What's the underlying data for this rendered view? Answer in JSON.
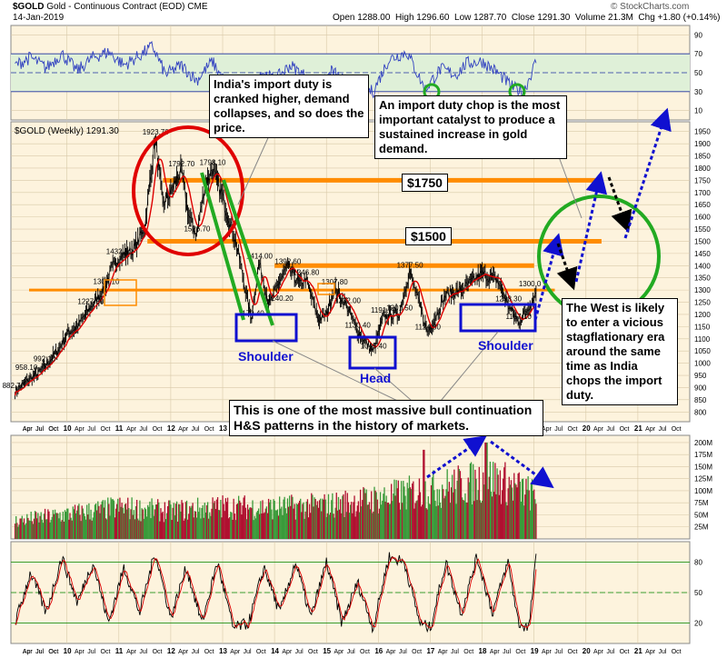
{
  "header": {
    "symbol": "$GOLD",
    "description": "Gold - Continuous Contract (EOD)",
    "exchange": "CME",
    "date": "14-Jan-2019",
    "open": "Open 1288.00",
    "high": "High 1296.60",
    "low": "Low 1287.70",
    "close": "Close 1291.30",
    "volume": "Volume 21.3M",
    "chg": "Chg +1.80 (+0.14%)",
    "credit": "© StockCharts.com",
    "series_label": "$GOLD (Weekly) 1291.30"
  },
  "annotations": {
    "india_note": "India's import duty is cranked higher, demand collapses, and so does the price.",
    "catalyst_note": "An import duty chop is the most important catalyst to produce a sustained increase in gold demand.",
    "west_note": "The West is likely to enter a vicious stagflationary era around the same time as India chops the import duty.",
    "hs_note": "This is one of the most massive bull continuation H&S patterns in the history of markets.",
    "level_1750": "$1750",
    "level_1500": "$1500",
    "left_shoulder": "Shoulder",
    "head": "Head",
    "right_shoulder": "Shoulder"
  },
  "colors": {
    "panel_bg": "#fdf3dd",
    "rsi_band": "#dff0d8",
    "orange": "#ff8c00",
    "red": "#e00000",
    "green": "#22aa22",
    "blue": "#1010d0",
    "price_line": "#000000",
    "ma_line": "#dd0000",
    "rsi_line": "#3040c0"
  },
  "chart_data": {
    "type": "line",
    "title": "$GOLD (Weekly) 1291.30",
    "price": {
      "ylim": [
        760,
        1990
      ],
      "y_ticks": [
        800,
        850,
        900,
        950,
        1000,
        1050,
        1100,
        1150,
        1200,
        1250,
        1300,
        1350,
        1400,
        1450,
        1500,
        1550,
        1600,
        1650,
        1700,
        1750,
        1800,
        1850,
        1900,
        1950
      ],
      "anchors": [
        [
          2009.0,
          882.7
        ],
        [
          2009.25,
          930
        ],
        [
          2009.45,
          958.1
        ],
        [
          2009.6,
          992.1
        ],
        [
          2009.85,
          1060
        ],
        [
          2010.0,
          1120
        ],
        [
          2010.2,
          1150
        ],
        [
          2010.45,
          1227.5
        ],
        [
          2010.7,
          1300
        ],
        [
          2010.85,
          1380
        ],
        [
          2011.0,
          1432.5
        ],
        [
          2011.3,
          1470
        ],
        [
          2011.5,
          1560
        ],
        [
          2011.7,
          1923.7
        ],
        [
          2011.85,
          1650
        ],
        [
          2012.0,
          1700
        ],
        [
          2012.2,
          1792.7
        ],
        [
          2012.35,
          1600
        ],
        [
          2012.5,
          1526.7
        ],
        [
          2012.65,
          1720
        ],
        [
          2012.8,
          1798.1
        ],
        [
          2013.0,
          1680
        ],
        [
          2013.25,
          1500
        ],
        [
          2013.35,
          1400
        ],
        [
          2013.55,
          1179.4
        ],
        [
          2013.7,
          1414
        ],
        [
          2013.9,
          1240
        ],
        [
          2014.1,
          1340
        ],
        [
          2014.25,
          1392.6
        ],
        [
          2014.5,
          1320
        ],
        [
          2014.6,
          1346.8
        ],
        [
          2014.85,
          1180
        ],
        [
          2015.0,
          1200
        ],
        [
          2015.15,
          1307.8
        ],
        [
          2015.4,
          1232
        ],
        [
          2015.6,
          1130.4
        ],
        [
          2015.9,
          1045.4
        ],
        [
          2016.1,
          1191.7
        ],
        [
          2016.4,
          1201.5
        ],
        [
          2016.6,
          1377.5
        ],
        [
          2016.85,
          1200
        ],
        [
          2016.95,
          1124.3
        ],
        [
          2017.3,
          1280
        ],
        [
          2017.6,
          1300
        ],
        [
          2017.9,
          1350
        ],
        [
          2018.0,
          1366
        ],
        [
          2018.3,
          1340
        ],
        [
          2018.5,
          1238.3
        ],
        [
          2018.7,
          1167.1
        ],
        [
          2018.9,
          1230
        ],
        [
          2019.04,
          1291.3
        ]
      ],
      "labels": [
        {
          "x": 2009.0,
          "y": 882.7,
          "text": "882.70"
        },
        {
          "x": 2009.25,
          "y": 958.1,
          "text": "958.10"
        },
        {
          "x": 2009.6,
          "y": 992.1,
          "text": "992.10"
        },
        {
          "x": 2010.45,
          "y": 1227.5,
          "text": "1227.50"
        },
        {
          "x": 2010.75,
          "y": 1309.1,
          "text": "1309.10"
        },
        {
          "x": 2011.0,
          "y": 1432.5,
          "text": "1432.50"
        },
        {
          "x": 2011.7,
          "y": 1923.7,
          "text": "1923.70"
        },
        {
          "x": 2012.2,
          "y": 1792.7,
          "text": "1792.70"
        },
        {
          "x": 2012.8,
          "y": 1798.1,
          "text": "1798.10"
        },
        {
          "x": 2012.5,
          "y": 1526.7,
          "text": "1526.70"
        },
        {
          "x": 2013.55,
          "y": 1179.4,
          "text": "1179.40"
        },
        {
          "x": 2013.7,
          "y": 1414,
          "text": "1414.00"
        },
        {
          "x": 2014.25,
          "y": 1392.6,
          "text": "1392.60"
        },
        {
          "x": 2014.6,
          "y": 1346.8,
          "text": "1346.80"
        },
        {
          "x": 2014.1,
          "y": 1240.2,
          "text": "1240.20"
        },
        {
          "x": 2015.15,
          "y": 1307.8,
          "text": "1307.80"
        },
        {
          "x": 2015.4,
          "y": 1232,
          "text": "1232.00"
        },
        {
          "x": 2015.6,
          "y": 1130.4,
          "text": "1130.40"
        },
        {
          "x": 2015.9,
          "y": 1045.4,
          "text": "1045.40"
        },
        {
          "x": 2016.1,
          "y": 1191.7,
          "text": "1191.70"
        },
        {
          "x": 2016.4,
          "y": 1201.5,
          "text": "1201.50"
        },
        {
          "x": 2016.6,
          "y": 1377.5,
          "text": "1377.50"
        },
        {
          "x": 2016.95,
          "y": 1124.3,
          "text": "1124.30"
        },
        {
          "x": 2018.5,
          "y": 1238.3,
          "text": "1238.30"
        },
        {
          "x": 2018.7,
          "y": 1167.1,
          "text": "1167.10"
        },
        {
          "x": 2018.95,
          "y": 1300,
          "text": "1300.0"
        }
      ]
    },
    "rsi": {
      "ylim": [
        0,
        100
      ],
      "y_ticks": [
        10,
        30,
        50,
        70,
        90
      ],
      "anchors": [
        [
          2009.0,
          58
        ],
        [
          2009.3,
          66
        ],
        [
          2009.6,
          55
        ],
        [
          2009.9,
          70
        ],
        [
          2010.2,
          52
        ],
        [
          2010.5,
          66
        ],
        [
          2010.8,
          72
        ],
        [
          2011.1,
          58
        ],
        [
          2011.4,
          68
        ],
        [
          2011.65,
          78
        ],
        [
          2011.9,
          48
        ],
        [
          2012.2,
          58
        ],
        [
          2012.5,
          42
        ],
        [
          2012.8,
          62
        ],
        [
          2013.0,
          44
        ],
        [
          2013.3,
          30
        ],
        [
          2013.55,
          25
        ],
        [
          2013.75,
          52
        ],
        [
          2014.0,
          42
        ],
        [
          2014.3,
          58
        ],
        [
          2014.6,
          46
        ],
        [
          2014.85,
          32
        ],
        [
          2015.1,
          52
        ],
        [
          2015.4,
          38
        ],
        [
          2015.6,
          34
        ],
        [
          2015.9,
          30
        ],
        [
          2016.2,
          64
        ],
        [
          2016.55,
          72
        ],
        [
          2016.9,
          32
        ],
        [
          2017.2,
          54
        ],
        [
          2017.5,
          48
        ],
        [
          2017.7,
          60
        ],
        [
          2018.0,
          62
        ],
        [
          2018.3,
          50
        ],
        [
          2018.6,
          34
        ],
        [
          2018.8,
          30
        ],
        [
          2019.04,
          62
        ]
      ]
    },
    "volume": {
      "ylim": [
        0,
        215
      ],
      "y_ticks": [
        25,
        50,
        75,
        100,
        125,
        150,
        175,
        200
      ],
      "y_tick_labels": [
        "25M",
        "50M",
        "75M",
        "100M",
        "125M",
        "150M",
        "175M",
        "200M"
      ],
      "anchors": [
        [
          2009.0,
          40
        ],
        [
          2010.0,
          55
        ],
        [
          2011.0,
          70
        ],
        [
          2012.0,
          62
        ],
        [
          2013.0,
          72
        ],
        [
          2014.0,
          70
        ],
        [
          2015.0,
          75
        ],
        [
          2016.0,
          90
        ],
        [
          2017.0,
          110
        ],
        [
          2017.8,
          125
        ],
        [
          2018.2,
          135
        ],
        [
          2018.6,
          118
        ],
        [
          2019.04,
          95
        ]
      ]
    },
    "stoch": {
      "ylim": [
        0,
        100
      ],
      "y_ticks": [
        20,
        50,
        80
      ],
      "anchors": [
        [
          2009.0,
          20
        ],
        [
          2009.3,
          70
        ],
        [
          2009.6,
          30
        ],
        [
          2009.9,
          85
        ],
        [
          2010.2,
          40
        ],
        [
          2010.5,
          80
        ],
        [
          2010.8,
          20
        ],
        [
          2011.1,
          75
        ],
        [
          2011.4,
          30
        ],
        [
          2011.7,
          90
        ],
        [
          2012.0,
          25
        ],
        [
          2012.3,
          75
        ],
        [
          2012.6,
          20
        ],
        [
          2012.9,
          80
        ],
        [
          2013.2,
          15
        ],
        [
          2013.5,
          20
        ],
        [
          2013.8,
          75
        ],
        [
          2014.1,
          30
        ],
        [
          2014.4,
          80
        ],
        [
          2014.7,
          25
        ],
        [
          2015.0,
          80
        ],
        [
          2015.3,
          20
        ],
        [
          2015.6,
          60
        ],
        [
          2015.9,
          15
        ],
        [
          2016.2,
          85
        ],
        [
          2016.5,
          80
        ],
        [
          2016.8,
          20
        ],
        [
          2017.0,
          15
        ],
        [
          2017.3,
          80
        ],
        [
          2017.6,
          30
        ],
        [
          2017.9,
          85
        ],
        [
          2018.2,
          30
        ],
        [
          2018.5,
          80
        ],
        [
          2018.7,
          20
        ],
        [
          2018.9,
          15
        ],
        [
          2019.04,
          85
        ]
      ]
    },
    "x_axis": {
      "start": 2008.92,
      "end": 2022.0,
      "year_ticks": [
        2010,
        2011,
        2012,
        2013,
        2014,
        2015,
        2016,
        2017,
        2018,
        2019,
        2020,
        2021
      ],
      "year_labels": [
        "10",
        "11",
        "12",
        "13",
        "14",
        "15",
        "16",
        "17",
        "18",
        "19",
        "20",
        "21"
      ],
      "month_labels": [
        "Apr",
        "Jul",
        "Oct"
      ]
    },
    "levels": [
      {
        "label": "$1750",
        "y": 1750
      },
      {
        "label": "$1500",
        "y": 1500
      },
      {
        "y": 1400
      },
      {
        "y": 1300
      }
    ]
  }
}
